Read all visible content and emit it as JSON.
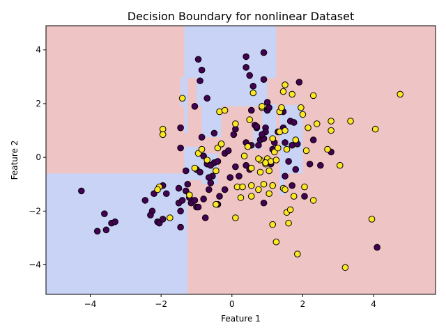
{
  "chart_data": {
    "type": "scatter",
    "title": "Decision Boundary for nonlinear Dataset",
    "xlabel": "Feature 1",
    "ylabel": "Feature 2",
    "xlim": [
      -5.25,
      5.75
    ],
    "ylim": [
      -5.1,
      4.9
    ],
    "xticks": [
      -4,
      -2,
      0,
      2,
      4
    ],
    "yticks": [
      -4,
      -2,
      0,
      2,
      4
    ],
    "grid": false,
    "colors": {
      "region_class0": "#c9d3f5",
      "region_class1": "#efc4c4",
      "point_class0": "#440154",
      "point_class1": "#fde725",
      "point_edge": "#000000"
    },
    "regions_class0": [
      {
        "x": [
          -1.45,
          -1.35
        ],
        "y": [
          1.9,
          3.0
        ]
      },
      {
        "x": [
          -1.35,
          -1.25
        ],
        "y": [
          0.9,
          4.9
        ]
      },
      {
        "x": [
          -1.25,
          1.25
        ],
        "y": [
          2.95,
          4.9
        ]
      },
      {
        "x": [
          -1.0,
          1.0
        ],
        "y": [
          1.9,
          3.0
        ]
      },
      {
        "x": [
          -0.85,
          -0.3
        ],
        "y": [
          0.75,
          2.0
        ]
      },
      {
        "x": [
          0.85,
          1.25
        ],
        "y": [
          0.75,
          2.0
        ]
      },
      {
        "x": [
          -5.25,
          -1.25
        ],
        "y": [
          -5.1,
          -0.6
        ]
      },
      {
        "x": [
          -1.35,
          -0.85
        ],
        "y": [
          -0.85,
          0.4
        ]
      },
      {
        "x": [
          -0.85,
          -0.4
        ],
        "y": [
          -1.0,
          0.15
        ]
      },
      {
        "x": [
          0.6,
          0.85
        ],
        "y": [
          0.3,
          1.1
        ]
      },
      {
        "x": [
          1.35,
          2.0
        ],
        "y": [
          -0.6,
          1.95
        ]
      },
      {
        "x": [
          1.35,
          1.5
        ],
        "y": [
          -1.4,
          -0.6
        ]
      }
    ],
    "series": [
      {
        "class": 0,
        "points": [
          [
            -4.25,
            -1.25
          ],
          [
            -3.55,
            -2.7
          ],
          [
            -3.8,
            -2.75
          ],
          [
            -3.4,
            -2.45
          ],
          [
            -3.3,
            -2.4
          ],
          [
            -3.6,
            -2.1
          ],
          [
            -2.45,
            -1.6
          ],
          [
            -2.25,
            -2.0
          ],
          [
            -2.3,
            -2.15
          ],
          [
            -2.1,
            -2.4
          ],
          [
            -2.05,
            -2.45
          ],
          [
            -1.95,
            -2.3
          ],
          [
            -1.95,
            -1.05
          ],
          [
            -2.2,
            -1.35
          ],
          [
            -1.85,
            -1.35
          ],
          [
            -1.5,
            -1.15
          ],
          [
            -1.5,
            -1.7
          ],
          [
            -1.45,
            -2.0
          ],
          [
            -1.45,
            -2.6
          ],
          [
            -1.4,
            -1.6
          ],
          [
            -1.3,
            -1.25
          ],
          [
            -1.25,
            -1.0
          ],
          [
            -1.3,
            -0.5
          ],
          [
            -1.2,
            -1.5
          ],
          [
            -1.15,
            -1.7
          ],
          [
            -1.05,
            -1.6
          ],
          [
            -1.0,
            -1.85
          ],
          [
            -0.95,
            -1.85
          ],
          [
            -0.8,
            -1.55
          ],
          [
            -0.75,
            -2.25
          ],
          [
            -0.65,
            -1.2
          ],
          [
            -0.6,
            -0.95
          ],
          [
            -0.55,
            -0.7
          ],
          [
            -0.5,
            -0.2
          ],
          [
            -0.4,
            -1.75
          ],
          [
            -0.35,
            -1.45
          ],
          [
            -0.2,
            -1.2
          ],
          [
            -0.05,
            -0.75
          ],
          [
            0.1,
            -0.35
          ],
          [
            0.2,
            -0.7
          ],
          [
            0.4,
            -0.3
          ],
          [
            0.5,
            -0.45
          ],
          [
            -1.45,
            0.35
          ],
          [
            -1.45,
            1.1
          ],
          [
            -1.0,
            -0.45
          ],
          [
            -0.9,
            -0.55
          ],
          [
            -0.8,
            0.05
          ],
          [
            -0.85,
            0.75
          ],
          [
            -0.7,
            -0.25
          ],
          [
            -0.65,
            -0.75
          ],
          [
            -0.6,
            -0.3
          ],
          [
            -0.5,
            0.9
          ],
          [
            -0.4,
            -0.15
          ],
          [
            -0.2,
            0.15
          ],
          [
            -0.1,
            0.25
          ],
          [
            0.05,
            0.85
          ],
          [
            0.1,
            1.05
          ],
          [
            0.4,
            0.55
          ],
          [
            0.55,
            0.45
          ],
          [
            0.65,
            1.2
          ],
          [
            0.7,
            1.1
          ],
          [
            0.75,
            0.45
          ],
          [
            0.8,
            0.65
          ],
          [
            0.9,
            0.7
          ],
          [
            0.95,
            1.1
          ],
          [
            1.0,
            1.75
          ],
          [
            1.05,
            1.85
          ],
          [
            1.0,
            2.05
          ],
          [
            1.1,
            -0.25
          ],
          [
            1.15,
            0.3
          ],
          [
            1.2,
            0.55
          ],
          [
            1.3,
            0.95
          ],
          [
            1.45,
            1.1
          ],
          [
            1.45,
            1.7
          ],
          [
            1.5,
            0.55
          ],
          [
            1.6,
            -0.15
          ],
          [
            1.65,
            1.35
          ],
          [
            1.7,
            0.45
          ],
          [
            1.75,
            1.3
          ],
          [
            1.8,
            -0.45
          ],
          [
            1.85,
            0.5
          ],
          [
            1.9,
            2.8
          ],
          [
            2.2,
            -0.25
          ],
          [
            2.3,
            0.65
          ],
          [
            2.5,
            -0.3
          ],
          [
            2.8,
            0.2
          ],
          [
            2.05,
            -1.45
          ],
          [
            1.7,
            -1.05
          ],
          [
            1.5,
            -0.7
          ],
          [
            0.9,
            -1.7
          ],
          [
            0.95,
            0.95
          ],
          [
            0.9,
            2.9
          ],
          [
            0.6,
            2.65
          ],
          [
            0.5,
            3.05
          ],
          [
            0.4,
            3.35
          ],
          [
            0.4,
            3.75
          ],
          [
            0.9,
            3.9
          ],
          [
            -0.95,
            3.65
          ],
          [
            -0.85,
            3.25
          ],
          [
            -0.9,
            2.85
          ],
          [
            -0.7,
            2.2
          ],
          [
            -1.05,
            1.9
          ],
          [
            0.55,
            1.75
          ],
          [
            0.7,
            1.15
          ],
          [
            0.85,
            0.85
          ],
          [
            4.1,
            -3.35
          ]
        ]
      },
      {
        "class": 1,
        "points": [
          [
            -1.95,
            1.05
          ],
          [
            -1.95,
            0.85
          ],
          [
            -1.4,
            2.2
          ],
          [
            -2.05,
            -1.1
          ],
          [
            -2.1,
            -1.2
          ],
          [
            -1.75,
            -2.25
          ],
          [
            -1.2,
            -1.4
          ],
          [
            -1.05,
            -0.4
          ],
          [
            -0.95,
            0.15
          ],
          [
            -0.85,
            0.3
          ],
          [
            -0.7,
            -0.1
          ],
          [
            -0.45,
            -0.5
          ],
          [
            -0.45,
            -1.75
          ],
          [
            -0.4,
            0.35
          ],
          [
            -0.3,
            0.5
          ],
          [
            -0.35,
            1.7
          ],
          [
            -0.2,
            1.75
          ],
          [
            0.1,
            1.25
          ],
          [
            0.1,
            -2.25
          ],
          [
            0.15,
            -1.1
          ],
          [
            0.25,
            -1.5
          ],
          [
            0.3,
            -1.1
          ],
          [
            0.35,
            0.05
          ],
          [
            0.45,
            0.4
          ],
          [
            0.5,
            1.4
          ],
          [
            0.55,
            -1.05
          ],
          [
            0.55,
            -1.45
          ],
          [
            0.55,
            -0.4
          ],
          [
            0.6,
            2.4
          ],
          [
            0.75,
            -1.2
          ],
          [
            0.8,
            -0.55
          ],
          [
            0.8,
            -0.1
          ],
          [
            0.85,
            1.85
          ],
          [
            0.9,
            -1.0
          ],
          [
            0.95,
            -0.25
          ],
          [
            1.0,
            -0.05
          ],
          [
            1.05,
            -0.5
          ],
          [
            1.05,
            -1.35
          ],
          [
            1.1,
            -0.15
          ],
          [
            1.15,
            -1.05
          ],
          [
            1.15,
            -2.5
          ],
          [
            1.2,
            0.2
          ],
          [
            1.25,
            -0.1
          ],
          [
            1.25,
            -3.15
          ],
          [
            1.3,
            0.35
          ],
          [
            1.35,
            0.95
          ],
          [
            1.35,
            1.7
          ],
          [
            1.4,
            1.85
          ],
          [
            1.45,
            2.45
          ],
          [
            1.45,
            -1.15
          ],
          [
            1.5,
            -1.2
          ],
          [
            1.5,
            2.7
          ],
          [
            1.5,
            1.0
          ],
          [
            1.55,
            0.3
          ],
          [
            1.55,
            -2.05
          ],
          [
            1.6,
            -2.45
          ],
          [
            1.65,
            -1.95
          ],
          [
            1.7,
            2.35
          ],
          [
            1.75,
            -1.45
          ],
          [
            1.8,
            0.65
          ],
          [
            1.85,
            -3.6
          ],
          [
            1.95,
            1.85
          ],
          [
            2.0,
            1.6
          ],
          [
            2.05,
            -1.1
          ],
          [
            2.1,
            0.25
          ],
          [
            2.15,
            1.1
          ],
          [
            2.3,
            -1.6
          ],
          [
            2.3,
            2.3
          ],
          [
            2.4,
            1.25
          ],
          [
            2.7,
            0.3
          ],
          [
            2.8,
            1.35
          ],
          [
            2.8,
            1.0
          ],
          [
            3.05,
            -0.3
          ],
          [
            3.35,
            1.35
          ],
          [
            3.2,
            -4.1
          ],
          [
            3.95,
            -2.3
          ],
          [
            4.05,
            1.05
          ],
          [
            4.75,
            2.35
          ],
          [
            -0.3,
            0.5
          ],
          [
            0.85,
            1.9
          ],
          [
            0.75,
            -0.05
          ],
          [
            0.95,
            -0.2
          ],
          [
            1.15,
            0.7
          ]
        ]
      }
    ]
  }
}
